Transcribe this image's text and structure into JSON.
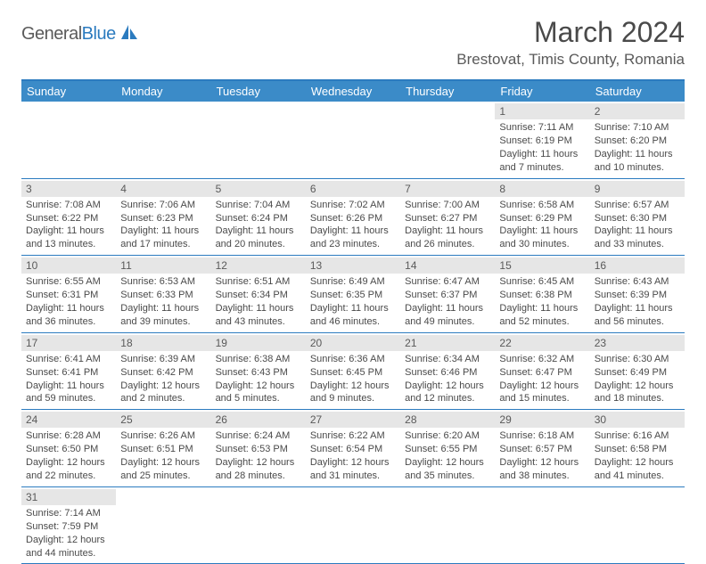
{
  "logo": {
    "text1": "General",
    "text2": "Blue"
  },
  "title": "March 2024",
  "location": "Brestovat, Timis County, Romania",
  "day_headers": [
    "Sunday",
    "Monday",
    "Tuesday",
    "Wednesday",
    "Thursday",
    "Friday",
    "Saturday"
  ],
  "colors": {
    "header_bg": "#3b8bc8",
    "border": "#2b7bbf",
    "date_bg": "#e6e6e6",
    "text": "#4a4a4a"
  },
  "weeks": [
    [
      {
        "date": "",
        "lines": []
      },
      {
        "date": "",
        "lines": []
      },
      {
        "date": "",
        "lines": []
      },
      {
        "date": "",
        "lines": []
      },
      {
        "date": "",
        "lines": []
      },
      {
        "date": "1",
        "lines": [
          "Sunrise: 7:11 AM",
          "Sunset: 6:19 PM",
          "Daylight: 11 hours and 7 minutes."
        ]
      },
      {
        "date": "2",
        "lines": [
          "Sunrise: 7:10 AM",
          "Sunset: 6:20 PM",
          "Daylight: 11 hours and 10 minutes."
        ]
      }
    ],
    [
      {
        "date": "3",
        "lines": [
          "Sunrise: 7:08 AM",
          "Sunset: 6:22 PM",
          "Daylight: 11 hours and 13 minutes."
        ]
      },
      {
        "date": "4",
        "lines": [
          "Sunrise: 7:06 AM",
          "Sunset: 6:23 PM",
          "Daylight: 11 hours and 17 minutes."
        ]
      },
      {
        "date": "5",
        "lines": [
          "Sunrise: 7:04 AM",
          "Sunset: 6:24 PM",
          "Daylight: 11 hours and 20 minutes."
        ]
      },
      {
        "date": "6",
        "lines": [
          "Sunrise: 7:02 AM",
          "Sunset: 6:26 PM",
          "Daylight: 11 hours and 23 minutes."
        ]
      },
      {
        "date": "7",
        "lines": [
          "Sunrise: 7:00 AM",
          "Sunset: 6:27 PM",
          "Daylight: 11 hours and 26 minutes."
        ]
      },
      {
        "date": "8",
        "lines": [
          "Sunrise: 6:58 AM",
          "Sunset: 6:29 PM",
          "Daylight: 11 hours and 30 minutes."
        ]
      },
      {
        "date": "9",
        "lines": [
          "Sunrise: 6:57 AM",
          "Sunset: 6:30 PM",
          "Daylight: 11 hours and 33 minutes."
        ]
      }
    ],
    [
      {
        "date": "10",
        "lines": [
          "Sunrise: 6:55 AM",
          "Sunset: 6:31 PM",
          "Daylight: 11 hours and 36 minutes."
        ]
      },
      {
        "date": "11",
        "lines": [
          "Sunrise: 6:53 AM",
          "Sunset: 6:33 PM",
          "Daylight: 11 hours and 39 minutes."
        ]
      },
      {
        "date": "12",
        "lines": [
          "Sunrise: 6:51 AM",
          "Sunset: 6:34 PM",
          "Daylight: 11 hours and 43 minutes."
        ]
      },
      {
        "date": "13",
        "lines": [
          "Sunrise: 6:49 AM",
          "Sunset: 6:35 PM",
          "Daylight: 11 hours and 46 minutes."
        ]
      },
      {
        "date": "14",
        "lines": [
          "Sunrise: 6:47 AM",
          "Sunset: 6:37 PM",
          "Daylight: 11 hours and 49 minutes."
        ]
      },
      {
        "date": "15",
        "lines": [
          "Sunrise: 6:45 AM",
          "Sunset: 6:38 PM",
          "Daylight: 11 hours and 52 minutes."
        ]
      },
      {
        "date": "16",
        "lines": [
          "Sunrise: 6:43 AM",
          "Sunset: 6:39 PM",
          "Daylight: 11 hours and 56 minutes."
        ]
      }
    ],
    [
      {
        "date": "17",
        "lines": [
          "Sunrise: 6:41 AM",
          "Sunset: 6:41 PM",
          "Daylight: 11 hours and 59 minutes."
        ]
      },
      {
        "date": "18",
        "lines": [
          "Sunrise: 6:39 AM",
          "Sunset: 6:42 PM",
          "Daylight: 12 hours and 2 minutes."
        ]
      },
      {
        "date": "19",
        "lines": [
          "Sunrise: 6:38 AM",
          "Sunset: 6:43 PM",
          "Daylight: 12 hours and 5 minutes."
        ]
      },
      {
        "date": "20",
        "lines": [
          "Sunrise: 6:36 AM",
          "Sunset: 6:45 PM",
          "Daylight: 12 hours and 9 minutes."
        ]
      },
      {
        "date": "21",
        "lines": [
          "Sunrise: 6:34 AM",
          "Sunset: 6:46 PM",
          "Daylight: 12 hours and 12 minutes."
        ]
      },
      {
        "date": "22",
        "lines": [
          "Sunrise: 6:32 AM",
          "Sunset: 6:47 PM",
          "Daylight: 12 hours and 15 minutes."
        ]
      },
      {
        "date": "23",
        "lines": [
          "Sunrise: 6:30 AM",
          "Sunset: 6:49 PM",
          "Daylight: 12 hours and 18 minutes."
        ]
      }
    ],
    [
      {
        "date": "24",
        "lines": [
          "Sunrise: 6:28 AM",
          "Sunset: 6:50 PM",
          "Daylight: 12 hours and 22 minutes."
        ]
      },
      {
        "date": "25",
        "lines": [
          "Sunrise: 6:26 AM",
          "Sunset: 6:51 PM",
          "Daylight: 12 hours and 25 minutes."
        ]
      },
      {
        "date": "26",
        "lines": [
          "Sunrise: 6:24 AM",
          "Sunset: 6:53 PM",
          "Daylight: 12 hours and 28 minutes."
        ]
      },
      {
        "date": "27",
        "lines": [
          "Sunrise: 6:22 AM",
          "Sunset: 6:54 PM",
          "Daylight: 12 hours and 31 minutes."
        ]
      },
      {
        "date": "28",
        "lines": [
          "Sunrise: 6:20 AM",
          "Sunset: 6:55 PM",
          "Daylight: 12 hours and 35 minutes."
        ]
      },
      {
        "date": "29",
        "lines": [
          "Sunrise: 6:18 AM",
          "Sunset: 6:57 PM",
          "Daylight: 12 hours and 38 minutes."
        ]
      },
      {
        "date": "30",
        "lines": [
          "Sunrise: 6:16 AM",
          "Sunset: 6:58 PM",
          "Daylight: 12 hours and 41 minutes."
        ]
      }
    ],
    [
      {
        "date": "31",
        "lines": [
          "Sunrise: 7:14 AM",
          "Sunset: 7:59 PM",
          "Daylight: 12 hours and 44 minutes."
        ]
      },
      {
        "date": "",
        "lines": []
      },
      {
        "date": "",
        "lines": []
      },
      {
        "date": "",
        "lines": []
      },
      {
        "date": "",
        "lines": []
      },
      {
        "date": "",
        "lines": []
      },
      {
        "date": "",
        "lines": []
      }
    ]
  ]
}
